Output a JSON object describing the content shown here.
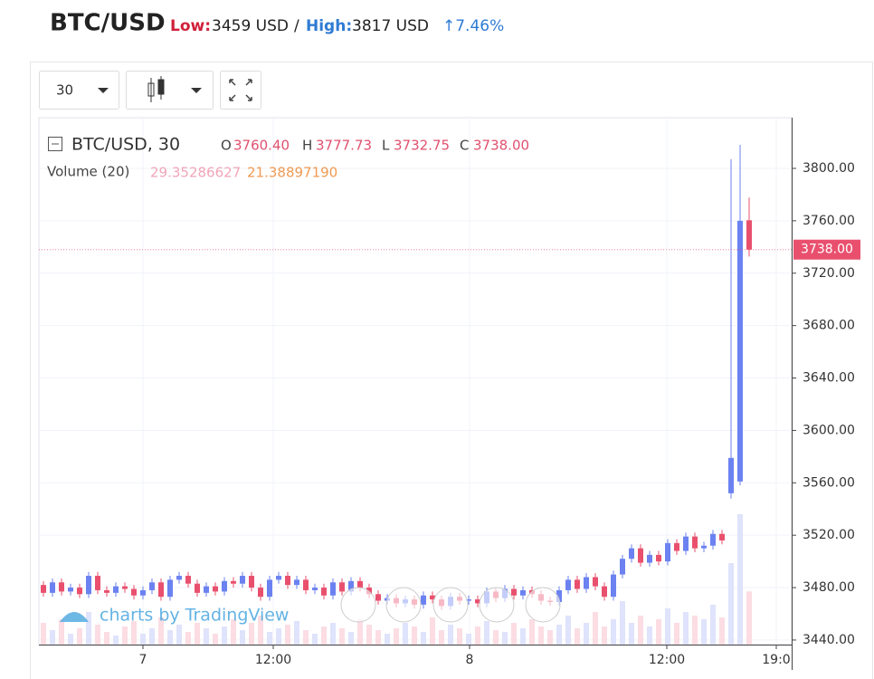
{
  "header": {
    "symbol": "BTC/USD",
    "low_label": "Low:",
    "low_value": "3459 USD",
    "separator": "/",
    "high_label": "High:",
    "high_value": "3817 USD",
    "change": "↑7.46%"
  },
  "toolbar": {
    "interval": "30"
  },
  "legend": {
    "title": "BTC/USD, 30",
    "o_label": "O",
    "o": "3760.40",
    "h_label": "H",
    "h": "3777.73",
    "l_label": "L",
    "l": "3732.75",
    "c_label": "C",
    "c": "3738.00",
    "volume_title": "Volume (20)",
    "volume": "29.35286627",
    "volume_ma": "21.38897190"
  },
  "watermark": "charts by TradingView",
  "chart_data": {
    "type": "candlestick",
    "open": [
      3482,
      3476,
      3484,
      3477,
      3480,
      3475,
      3489,
      3478,
      3476,
      3481,
      3479,
      3474,
      3478,
      3484,
      3473,
      3486,
      3489,
      3483,
      3476,
      3481,
      3477,
      3485,
      3483,
      3489,
      3480,
      3473,
      3486,
      3489,
      3482,
      3486,
      3478,
      3480,
      3474,
      3484,
      3477,
      3485,
      3480,
      3475,
      3470,
      3472,
      3468,
      3471,
      3467,
      3474,
      3471,
      3466,
      3473,
      3470,
      3471,
      3468,
      3477,
      3472,
      3479,
      3474,
      3478,
      3475,
      3470,
      3469,
      3478,
      3486,
      3479,
      3488,
      3481,
      3473,
      3490,
      3502,
      3510,
      3499,
      3505,
      3500,
      3514,
      3508,
      3519,
      3510,
      3512,
      3521,
      3552,
      3561,
      3760.4
    ],
    "high": [
      3485,
      3487,
      3487,
      3483,
      3483,
      3492,
      3492,
      3481,
      3484,
      3484,
      3482,
      3481,
      3487,
      3487,
      3489,
      3492,
      3492,
      3486,
      3484,
      3484,
      3488,
      3488,
      3492,
      3492,
      3483,
      3489,
      3492,
      3492,
      3489,
      3489,
      3483,
      3483,
      3487,
      3487,
      3488,
      3488,
      3483,
      3478,
      3475,
      3475,
      3474,
      3474,
      3477,
      3477,
      3474,
      3476,
      3476,
      3474,
      3474,
      3480,
      3480,
      3482,
      3482,
      3481,
      3481,
      3478,
      3473,
      3481,
      3489,
      3489,
      3491,
      3491,
      3484,
      3493,
      3505,
      3513,
      3513,
      3508,
      3508,
      3517,
      3517,
      3522,
      3522,
      3515,
      3524,
      3524,
      3807,
      3818,
      3777.73
    ],
    "low": [
      3473,
      3473,
      3474,
      3474,
      3472,
      3472,
      3475,
      3473,
      3473,
      3476,
      3471,
      3471,
      3475,
      3470,
      3470,
      3483,
      3480,
      3473,
      3473,
      3474,
      3474,
      3480,
      3480,
      3477,
      3470,
      3470,
      3483,
      3479,
      3479,
      3475,
      3475,
      3471,
      3471,
      3474,
      3474,
      3477,
      3472,
      3467,
      3467,
      3465,
      3465,
      3464,
      3464,
      3468,
      3463,
      3463,
      3467,
      3467,
      3465,
      3465,
      3469,
      3469,
      3471,
      3471,
      3472,
      3467,
      3466,
      3466,
      3475,
      3476,
      3476,
      3478,
      3470,
      3470,
      3487,
      3499,
      3496,
      3496,
      3497,
      3497,
      3505,
      3505,
      3507,
      3507,
      3509,
      3513,
      3548,
      3558,
      3732.75
    ],
    "close": [
      3476,
      3484,
      3477,
      3480,
      3475,
      3489,
      3478,
      3476,
      3481,
      3479,
      3474,
      3478,
      3484,
      3473,
      3486,
      3489,
      3483,
      3476,
      3481,
      3477,
      3485,
      3483,
      3489,
      3480,
      3473,
      3486,
      3489,
      3482,
      3486,
      3478,
      3480,
      3474,
      3484,
      3477,
      3485,
      3480,
      3475,
      3470,
      3472,
      3468,
      3471,
      3467,
      3474,
      3471,
      3466,
      3473,
      3470,
      3471,
      3468,
      3477,
      3472,
      3479,
      3474,
      3478,
      3475,
      3470,
      3469,
      3478,
      3486,
      3479,
      3488,
      3481,
      3473,
      3490,
      3502,
      3510,
      3499,
      3505,
      3500,
      3514,
      3508,
      3519,
      3510,
      3512,
      3521,
      3516,
      3579,
      3760,
      3738
    ],
    "volume": [
      12,
      8,
      14,
      6,
      9,
      18,
      11,
      7,
      5,
      10,
      13,
      6,
      9,
      15,
      8,
      11,
      7,
      12,
      9,
      6,
      10,
      14,
      8,
      12,
      16,
      7,
      9,
      11,
      13,
      8,
      6,
      10,
      12,
      9,
      7,
      14,
      11,
      8,
      6,
      9,
      12,
      10,
      7,
      15,
      8,
      11,
      9,
      6,
      10,
      13,
      8,
      7,
      12,
      9,
      14,
      10,
      8,
      11,
      16,
      9,
      12,
      18,
      10,
      14,
      24,
      12,
      16,
      10,
      14,
      20,
      12,
      18,
      16,
      14,
      22,
      15,
      45,
      72,
      29.35286627
    ],
    "up_color": "#6b82f0",
    "down_color": "#e9506e",
    "volume_up_color": "#dfe3fb",
    "volume_down_color": "#fbdde3",
    "volume_lim": [
      0,
      150
    ],
    "ylim": [
      3436.5,
      3838.7
    ],
    "yticks": [
      {
        "value": 3440,
        "label": "3440.00"
      },
      {
        "value": 3480,
        "label": "3480.00"
      },
      {
        "value": 3520,
        "label": "3520.00"
      },
      {
        "value": 3560,
        "label": "3560.00"
      },
      {
        "value": 3600,
        "label": "3600.00"
      },
      {
        "value": 3640,
        "label": "3640.00"
      },
      {
        "value": 3680,
        "label": "3680.00"
      },
      {
        "value": 3720,
        "label": "3720.00"
      },
      {
        "value": 3760,
        "label": "3760.00"
      },
      {
        "value": 3800,
        "label": "3800.00"
      }
    ],
    "xlim": [
      0,
      83.2
    ],
    "xticks": [
      {
        "value": 11.5,
        "label": "7"
      },
      {
        "value": 25.9,
        "label": "12:00"
      },
      {
        "value": 47.6,
        "label": "8"
      },
      {
        "value": 69.4,
        "label": "12:00"
      },
      {
        "value": 81.5,
        "label": "19:0"
      }
    ],
    "last_price": {
      "value": 3738,
      "label": "3738.00"
    },
    "grid": true
  }
}
